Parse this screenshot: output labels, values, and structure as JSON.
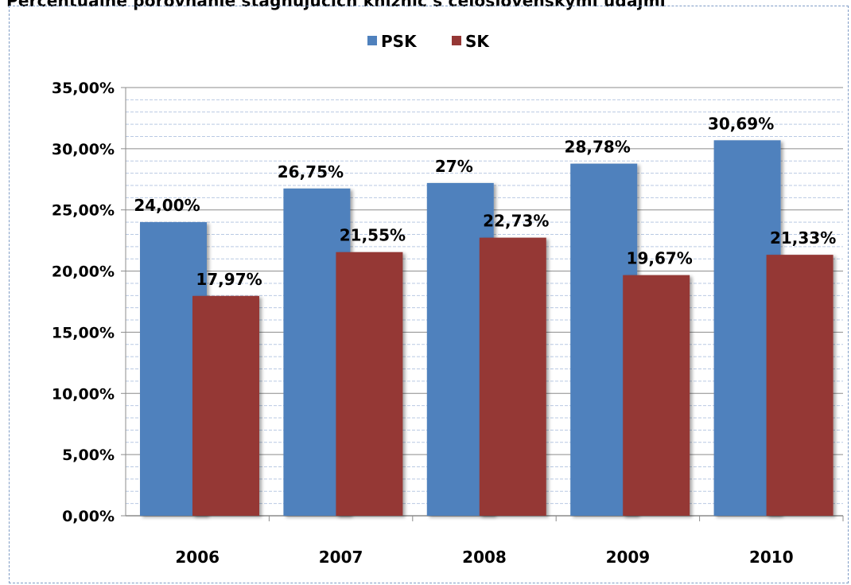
{
  "page": {
    "title": "Percentuálne porovnanie stagnujúcich knižníc s celoslovenskými údajmi"
  },
  "chart_data": {
    "type": "bar",
    "categories": [
      "2006",
      "2007",
      "2008",
      "2009",
      "2010"
    ],
    "series": [
      {
        "name": "PSK",
        "color": "#4f81bd",
        "values": [
          24.0,
          26.75,
          27.2,
          28.78,
          30.69
        ],
        "labels": [
          "24,00%",
          "26,75%",
          "27%",
          "28,78%",
          "30,69%"
        ]
      },
      {
        "name": "SK",
        "color": "#953735",
        "values": [
          17.97,
          21.55,
          22.73,
          19.67,
          21.33
        ],
        "labels": [
          "17,97%",
          "21,55%",
          "22,73%",
          "19,67%",
          "21,33%"
        ]
      }
    ],
    "ylim": [
      0,
      35
    ],
    "yticks": [
      0,
      5,
      10,
      15,
      20,
      25,
      30,
      35
    ],
    "ytick_labels": [
      "0,00%",
      "5,00%",
      "10,00%",
      "15,00%",
      "20,00%",
      "25,00%",
      "30,00%",
      "35,00%"
    ],
    "grid": true,
    "legend": "top-center"
  }
}
